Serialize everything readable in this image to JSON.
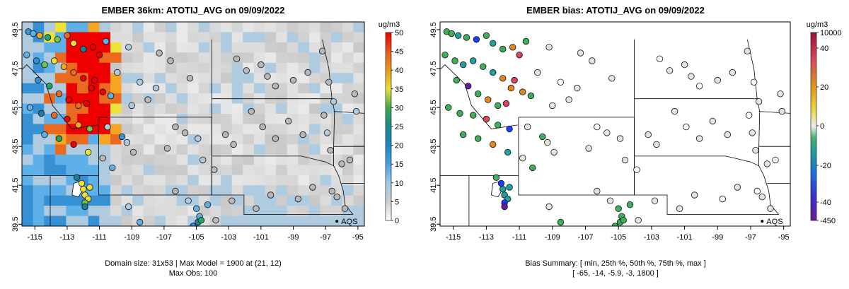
{
  "left_panel": {
    "title": "EMBER 36km: ATOTIJ_AVG on 09/09/2022",
    "unit": "ug/m3",
    "legend_ticks": [
      "0",
      "5",
      "10",
      "15",
      "20",
      "25",
      "30",
      "35",
      "40",
      "45",
      "50"
    ],
    "caption_line1": "Domain size: 31x53 | Max Model = 1900 at (21, 12)",
    "caption_line2": "Max Obs: 100"
  },
  "right_panel": {
    "title": "EMBER bias: ATOTIJ_AVG on 09/09/2022",
    "unit": "ug/m3",
    "legend_ticks": [
      "-450",
      "-40",
      "-20",
      "0",
      "20",
      "40",
      "10000"
    ],
    "caption_line1": "Bias Summary: [ min, 25th %, 50th %, 75th %, max ]",
    "caption_line2": "[ -65,   -14,   -5.9,   -3,   1800 ]"
  },
  "axes": {
    "x_ticks": [
      "-115",
      "-113",
      "-111",
      "-109",
      "-107",
      "-105",
      "-103",
      "-101",
      "-99",
      "-97",
      "-95"
    ],
    "y_ticks": [
      "39.5",
      "41.5",
      "43.5",
      "45.5",
      "47.5",
      "49.5"
    ],
    "x_range": [
      -115.8,
      -94.6
    ],
    "y_range": [
      39.4,
      49.9
    ]
  },
  "marker": {
    "label": "AQS"
  },
  "colors": {
    "conc_scale": [
      "#d3d3d3",
      "#aecbe0",
      "#5fb0e8",
      "#3591d4",
      "#1b7e9c",
      "#22a36a",
      "#74c44a",
      "#f0e13a",
      "#f5a623",
      "#ea6a1f",
      "#ee0000"
    ],
    "bias_scale": [
      "#6a1b9a",
      "#1e3cff",
      "#21a0a0",
      "#3fae5a",
      "#dfe8d8",
      "#ead23a",
      "#e0881e",
      "#d64560",
      "#b0172e"
    ]
  }
}
